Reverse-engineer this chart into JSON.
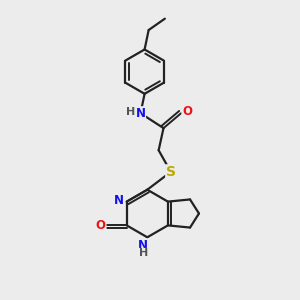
{
  "bg": "#ececec",
  "bond_color": "#222222",
  "lw": 1.6,
  "dlw": 1.4,
  "fs": 8.5,
  "atom_colors": {
    "N": "#1111ee",
    "O": "#ee1111",
    "S": "#bbaa00",
    "C": "#222222",
    "H": "#555555"
  },
  "xlim": [
    0,
    10
  ],
  "ylim": [
    0,
    11
  ]
}
